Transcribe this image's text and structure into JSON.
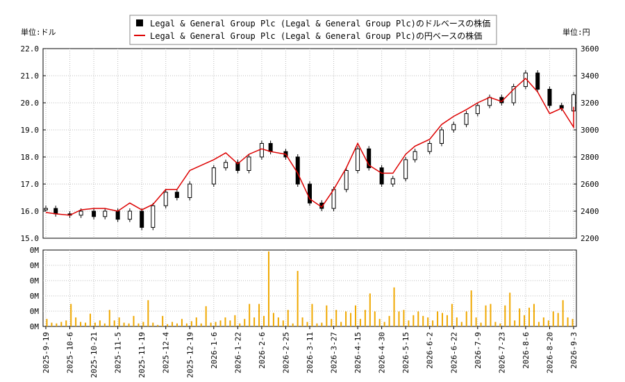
{
  "chart_data": [
    {
      "type": "candlestick",
      "series": [
        {
          "name": "Legal & General Group Plc (Legal & General Group Plc)のドルベースの株価",
          "color": "#000000"
        },
        {
          "name": "Legal & General Group Plc (Legal & General Group Plc)の円ベースの株価",
          "color": "#dd0000"
        }
      ],
      "left_axis": {
        "label": "単位:ドル",
        "min": 15.0,
        "max": 22.0,
        "ticks": [
          "15.0",
          "16.0",
          "17.0",
          "18.0",
          "19.0",
          "20.0",
          "21.0",
          "22.0"
        ]
      },
      "right_axis": {
        "label": "単位:円",
        "min": 2200,
        "max": 3600,
        "ticks": [
          "2200",
          "2400",
          "2600",
          "2800",
          "3000",
          "3200",
          "3400",
          "3600"
        ]
      },
      "x_labels": [
        "2025-9-19",
        "2025-10-6",
        "2025-10-21",
        "2025-11-5",
        "2025-11-19",
        "2025-12-4",
        "2025-12-19",
        "2026-1-6",
        "2026-1-22",
        "2026-2-6",
        "2026-2-25",
        "2026-3-11",
        "2026-3-27",
        "2026-4-15",
        "2026-4-30",
        "2026-5-15",
        "2026-6-2",
        "2026-6-22",
        "2026-7-9",
        "2026-7-23",
        "2026-8-6",
        "2026-8-20",
        "2026-9-3"
      ],
      "usd_close": [
        {
          "date": "2025-9-19",
          "close": 16.1
        },
        {
          "date": "2025-9-26",
          "close": 15.9
        },
        {
          "date": "2025-10-6",
          "close": 15.85
        },
        {
          "date": "2025-10-13",
          "close": 16.0
        },
        {
          "date": "2025-10-21",
          "close": 15.8
        },
        {
          "date": "2025-10-28",
          "close": 16.0
        },
        {
          "date": "2025-11-5",
          "close": 15.7
        },
        {
          "date": "2025-11-12",
          "close": 16.0
        },
        {
          "date": "2025-11-19",
          "close": 15.4
        },
        {
          "date": "2025-11-26",
          "close": 16.2
        },
        {
          "date": "2025-12-4",
          "close": 16.7
        },
        {
          "date": "2025-12-11",
          "close": 16.5
        },
        {
          "date": "2025-12-19",
          "close": 17.0
        },
        {
          "date": "2026-1-6",
          "close": 17.6
        },
        {
          "date": "2026-1-14",
          "close": 17.8
        },
        {
          "date": "2026-1-22",
          "close": 17.5
        },
        {
          "date": "2026-1-29",
          "close": 18.0
        },
        {
          "date": "2026-2-6",
          "close": 18.5
        },
        {
          "date": "2026-2-13",
          "close": 18.2
        },
        {
          "date": "2026-2-25",
          "close": 18.0
        },
        {
          "date": "2026-3-4",
          "close": 17.0
        },
        {
          "date": "2026-3-11",
          "close": 16.3
        },
        {
          "date": "2026-3-19",
          "close": 16.1
        },
        {
          "date": "2026-3-27",
          "close": 16.8
        },
        {
          "date": "2026-4-6",
          "close": 17.5
        },
        {
          "date": "2026-4-15",
          "close": 18.3
        },
        {
          "date": "2026-4-22",
          "close": 17.6
        },
        {
          "date": "2026-4-30",
          "close": 17.0
        },
        {
          "date": "2026-5-7",
          "close": 17.2
        },
        {
          "date": "2026-5-15",
          "close": 17.9
        },
        {
          "date": "2026-5-22",
          "close": 18.2
        },
        {
          "date": "2026-6-2",
          "close": 18.5
        },
        {
          "date": "2026-6-12",
          "close": 19.0
        },
        {
          "date": "2026-6-22",
          "close": 19.2
        },
        {
          "date": "2026-7-1",
          "close": 19.6
        },
        {
          "date": "2026-7-9",
          "close": 19.9
        },
        {
          "date": "2026-7-16",
          "close": 20.2
        },
        {
          "date": "2026-7-23",
          "close": 20.0
        },
        {
          "date": "2026-7-30",
          "close": 20.6
        },
        {
          "date": "2026-8-6",
          "close": 21.1
        },
        {
          "date": "2026-8-13",
          "close": 20.5
        },
        {
          "date": "2026-8-20",
          "close": 19.9
        },
        {
          "date": "2026-8-27",
          "close": 19.8
        },
        {
          "date": "2026-9-3",
          "close": 19.7
        },
        {
          "date": "2026-9-10",
          "close": 20.3
        }
      ],
      "jpy_close": [
        {
          "date": "2025-9-19",
          "close": 2390
        },
        {
          "date": "2025-9-26",
          "close": 2380
        },
        {
          "date": "2025-10-6",
          "close": 2370
        },
        {
          "date": "2025-10-13",
          "close": 2410
        },
        {
          "date": "2025-10-21",
          "close": 2420
        },
        {
          "date": "2025-10-28",
          "close": 2420
        },
        {
          "date": "2025-11-5",
          "close": 2400
        },
        {
          "date": "2025-11-12",
          "close": 2460
        },
        {
          "date": "2025-11-19",
          "close": 2410
        },
        {
          "date": "2025-11-26",
          "close": 2450
        },
        {
          "date": "2025-12-4",
          "close": 2560
        },
        {
          "date": "2025-12-11",
          "close": 2560
        },
        {
          "date": "2025-12-19",
          "close": 2700
        },
        {
          "date": "2026-1-6",
          "close": 2780
        },
        {
          "date": "2026-1-14",
          "close": 2830
        },
        {
          "date": "2026-1-22",
          "close": 2750
        },
        {
          "date": "2026-1-29",
          "close": 2820
        },
        {
          "date": "2026-2-6",
          "close": 2860
        },
        {
          "date": "2026-2-13",
          "close": 2840
        },
        {
          "date": "2026-2-25",
          "close": 2820
        },
        {
          "date": "2026-3-4",
          "close": 2680
        },
        {
          "date": "2026-3-11",
          "close": 2490
        },
        {
          "date": "2026-3-19",
          "close": 2430
        },
        {
          "date": "2026-3-27",
          "close": 2560
        },
        {
          "date": "2026-4-6",
          "close": 2720
        },
        {
          "date": "2026-4-15",
          "close": 2900
        },
        {
          "date": "2026-4-22",
          "close": 2740
        },
        {
          "date": "2026-4-30",
          "close": 2680
        },
        {
          "date": "2026-5-7",
          "close": 2680
        },
        {
          "date": "2026-5-15",
          "close": 2820
        },
        {
          "date": "2026-5-22",
          "close": 2880
        },
        {
          "date": "2026-6-2",
          "close": 2930
        },
        {
          "date": "2026-6-12",
          "close": 3040
        },
        {
          "date": "2026-6-22",
          "close": 3100
        },
        {
          "date": "2026-7-1",
          "close": 3150
        },
        {
          "date": "2026-7-9",
          "close": 3200
        },
        {
          "date": "2026-7-16",
          "close": 3240
        },
        {
          "date": "2026-7-23",
          "close": 3210
        },
        {
          "date": "2026-7-30",
          "close": 3300
        },
        {
          "date": "2026-8-6",
          "close": 3380
        },
        {
          "date": "2026-8-13",
          "close": 3280
        },
        {
          "date": "2026-8-20",
          "close": 3120
        },
        {
          "date": "2026-8-27",
          "close": 3160
        },
        {
          "date": "2026-9-3",
          "close": 3020
        },
        {
          "date": "2026-9-10",
          "close": 3170
        }
      ]
    },
    {
      "type": "bar",
      "title": "",
      "y_ticks": [
        "0M",
        "0M",
        "0M",
        "0M",
        "0M",
        "0M"
      ],
      "color": "#f0a800",
      "values": [
        0.1,
        0.05,
        0.04,
        0.06,
        0.08,
        0.3,
        0.12,
        0.06,
        0.05,
        0.17,
        0.05,
        0.08,
        0.04,
        0.22,
        0.08,
        0.12,
        0.05,
        0.04,
        0.14,
        0.04,
        0.06,
        0.35,
        0.05,
        0.02,
        0.14,
        0.03,
        0.06,
        0.04,
        0.1,
        0.04,
        0.07,
        0.12,
        0.04,
        0.27,
        0.05,
        0.06,
        0.08,
        0.12,
        0.08,
        0.15,
        0.04,
        0.1,
        0.3,
        0.12,
        0.3,
        0.14,
        1.0,
        0.18,
        0.12,
        0.08,
        0.22,
        0.04,
        0.74,
        0.12,
        0.06,
        0.3,
        0.04,
        0.05,
        0.28,
        0.1,
        0.22,
        0.06,
        0.2,
        0.18,
        0.28,
        0.1,
        0.22,
        0.44,
        0.2,
        0.1,
        0.06,
        0.14,
        0.52,
        0.2,
        0.22,
        0.08,
        0.15,
        0.2,
        0.14,
        0.12,
        0.08,
        0.2,
        0.18,
        0.15,
        0.3,
        0.12,
        0.06,
        0.2,
        0.48,
        0.12,
        0.05,
        0.28,
        0.3,
        0.06,
        0.04,
        0.28,
        0.45,
        0.08,
        0.24,
        0.15,
        0.25,
        0.3,
        0.06,
        0.12,
        0.08,
        0.2,
        0.18,
        0.35,
        0.12,
        0.1
      ],
      "x_labels": [
        "2025-9-19",
        "2025-10-6",
        "2025-10-21",
        "2025-11-5",
        "2025-11-19",
        "2025-12-4",
        "2025-12-19",
        "2026-1-6",
        "2026-1-22",
        "2026-2-6",
        "2026-2-25",
        "2026-3-11",
        "2026-3-27",
        "2026-4-15",
        "2026-4-30",
        "2026-5-15",
        "2026-6-2",
        "2026-6-22",
        "2026-7-9",
        "2026-7-23",
        "2026-8-6",
        "2026-8-20",
        "2026-9-3"
      ]
    }
  ]
}
